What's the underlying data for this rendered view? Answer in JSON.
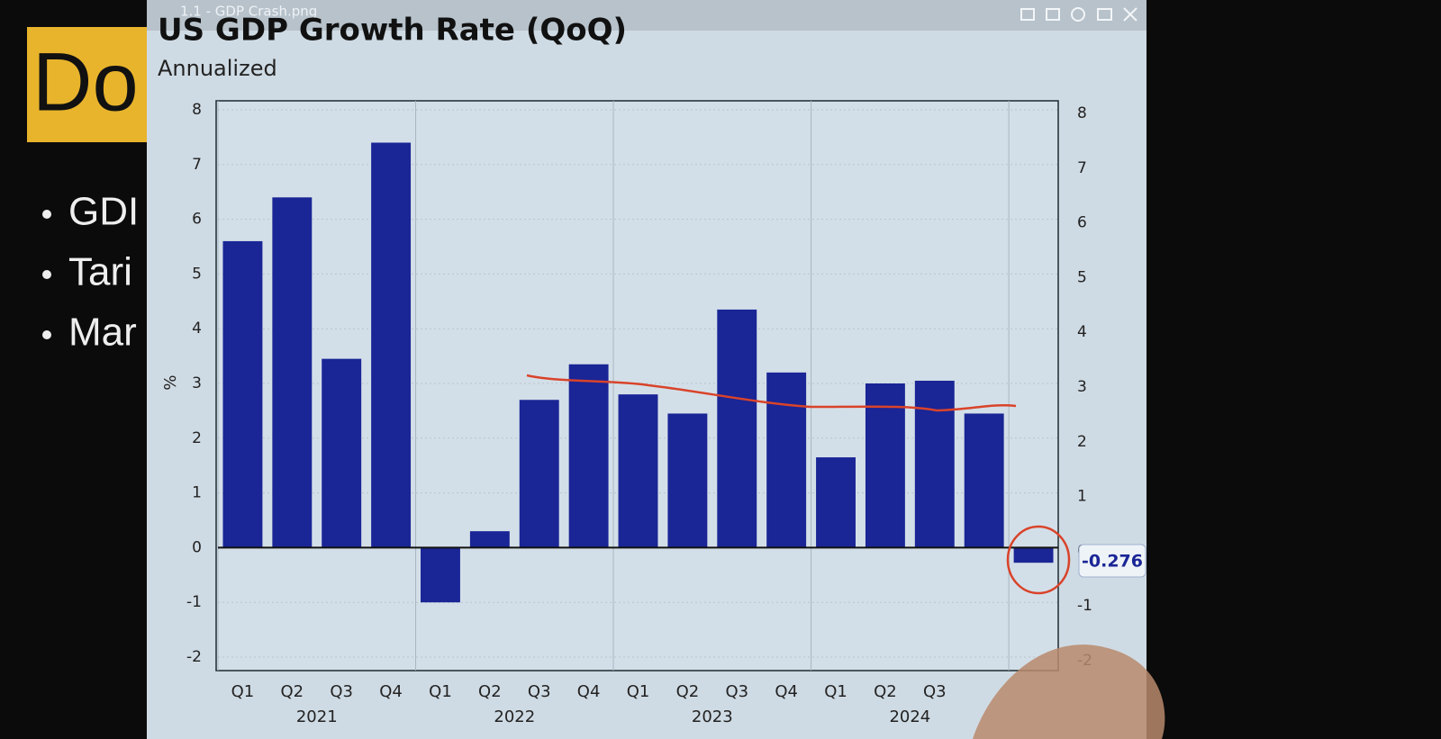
{
  "window": {
    "title": "1.1 - GDP Crash.png"
  },
  "slide": {
    "heading": "Do",
    "bullets": [
      "GDI",
      "Tari",
      "Mar"
    ]
  },
  "chart_data": {
    "type": "bar",
    "title": "US GDP Growth Rate (QoQ)",
    "subtitle": "Annualized",
    "y_label": "%",
    "categories": [
      "Q1",
      "Q2",
      "Q3",
      "Q4",
      "Q1",
      "Q2",
      "Q3",
      "Q4",
      "Q1",
      "Q2",
      "Q3",
      "Q4",
      "Q1",
      "Q2",
      "Q3",
      null,
      null
    ],
    "years": [
      "2021",
      "2022",
      "2023",
      "2024"
    ],
    "values": [
      5.6,
      6.4,
      3.45,
      7.4,
      -1.0,
      0.3,
      2.7,
      3.35,
      2.8,
      2.45,
      4.35,
      3.2,
      1.65,
      3.0,
      3.05,
      2.45,
      -0.276
    ],
    "color": "#1a2596",
    "ylim": [
      -2,
      8
    ],
    "yticks": [
      -2,
      -1,
      0,
      1,
      2,
      3,
      4,
      5,
      6,
      7,
      8
    ],
    "grid": true
  }
}
